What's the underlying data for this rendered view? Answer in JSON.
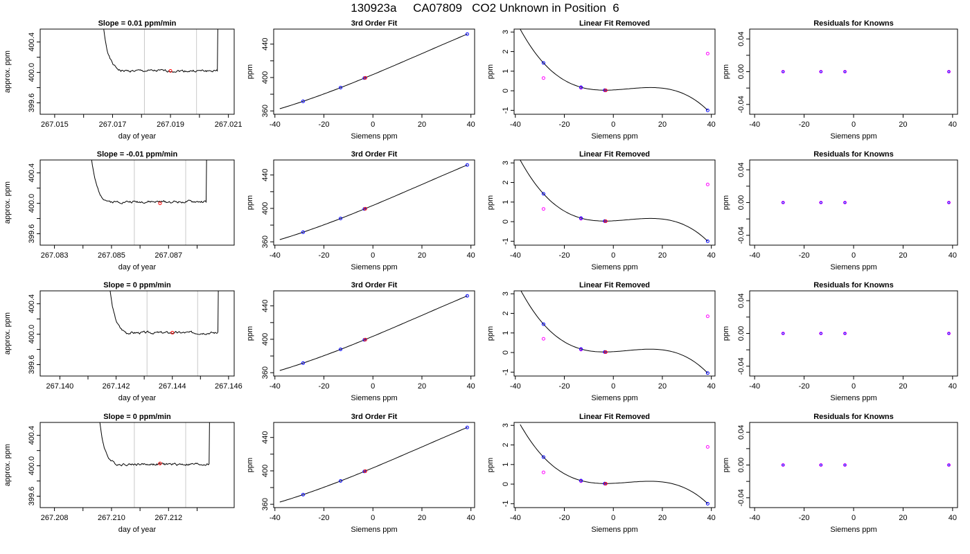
{
  "figure": {
    "title": "130923a     CA07809   CO2 Unknown in Position  6"
  },
  "colors": {
    "line": "#000000",
    "vline": "#c8c8c8",
    "known_point": "#0000ff",
    "unknown_point": "#ff0000",
    "raw_point": "#ff00ff"
  },
  "chart_data": [
    {
      "type": "line",
      "row": 0,
      "col": 0,
      "title": "Slope =  0.01  ppm/min",
      "xlabel": "day of year",
      "ylabel": "approx. ppm",
      "xlim": [
        267.0145,
        267.0212
      ],
      "ylim": [
        399.45,
        400.57
      ],
      "x_ticks": [
        267.015,
        267.016,
        267.017,
        267.018,
        267.019,
        267.02,
        267.021
      ],
      "x_tick_labels": [
        "267.015",
        "",
        "267.017",
        "",
        "267.019",
        "",
        "267.021"
      ],
      "y_ticks": [
        399.6,
        399.8,
        400.0,
        400.2,
        400.4
      ],
      "y_tick_labels": [
        "399.6",
        "",
        "400.0",
        "",
        "400.4"
      ],
      "vlines": [
        267.0181,
        267.0199
      ],
      "marker": {
        "x": 267.019,
        "y": 400.02
      },
      "trace_start": 267.0164,
      "trace_end": 267.0207,
      "noise_seed": 1
    },
    {
      "type": "scatter",
      "row": 0,
      "col": 1,
      "title": "3rd Order Fit",
      "xlabel": "Siemens ppm",
      "ylabel": "ppm",
      "xlim": [
        -40.5,
        41.5
      ],
      "ylim": [
        356,
        458
      ],
      "x_ticks": [
        -40,
        -20,
        0,
        20,
        40
      ],
      "x_tick_labels": [
        "-40",
        "-20",
        "0",
        "20",
        "40"
      ],
      "y_ticks": [
        360,
        380,
        400,
        420,
        440
      ],
      "y_tick_labels": [
        "360",
        "",
        "400",
        "",
        "440"
      ],
      "known_x": [
        -28.5,
        -13.2,
        -3.5,
        38.5
      ],
      "known_y": [
        371.5,
        387.9,
        399.3,
        452.0
      ],
      "unknown_x": [
        -3.1
      ],
      "unknown_y": [
        399.6
      ],
      "fit_range": [
        -38,
        38.5
      ]
    },
    {
      "type": "scatter",
      "row": 0,
      "col": 2,
      "title": "Linear Fit Removed",
      "xlabel": "Siemens ppm",
      "ylabel": "ppm",
      "xlim": [
        -40.5,
        41.5
      ],
      "ylim": [
        -1.2,
        3.15
      ],
      "x_ticks": [
        -40,
        -20,
        0,
        20,
        40
      ],
      "x_tick_labels": [
        "-40",
        "-20",
        "0",
        "20",
        "40"
      ],
      "y_ticks": [
        -1,
        0,
        1,
        2,
        3
      ],
      "y_tick_labels": [
        "-1",
        "0",
        "1",
        "2",
        "3"
      ],
      "known_x": [
        -28.5,
        -13.2,
        -3.5,
        38.5
      ],
      "known_y": [
        1.42,
        0.18,
        0.03,
        -1.0
      ],
      "unknown_x": [
        -3.1
      ],
      "unknown_y": [
        0.02
      ],
      "raw_x": [
        -28.5,
        -13.2,
        -3.5,
        38.5
      ],
      "raw_y": [
        0.65,
        0.15,
        0.02,
        1.9
      ],
      "curve_x": [
        -38,
        -28.5,
        -13.2,
        -3.5,
        14,
        38.5
      ],
      "curve_y": [
        2.95,
        1.42,
        0.18,
        0.03,
        -0.05,
        -1.0
      ]
    },
    {
      "type": "scatter",
      "row": 0,
      "col": 3,
      "title": "Residuals for Knowns",
      "xlabel": "Siemens ppm",
      "ylabel": "ppm",
      "xlim": [
        -42,
        42
      ],
      "ylim": [
        -0.052,
        0.052
      ],
      "x_ticks": [
        -40,
        -20,
        0,
        20,
        40
      ],
      "x_tick_labels": [
        "-40",
        "-20",
        "0",
        "20",
        "40"
      ],
      "y_ticks": [
        -0.04,
        -0.02,
        0,
        0.02,
        0.04
      ],
      "y_tick_labels": [
        "-0.04",
        "",
        "0.00",
        "",
        "0.04"
      ],
      "known_x": [
        -28.5,
        -13.2,
        -3.5,
        38.5
      ],
      "known_y": [
        0,
        0,
        0,
        0
      ]
    },
    {
      "type": "line",
      "row": 1,
      "col": 0,
      "title": "Slope =  -0.01  ppm/min",
      "xlabel": "day of year",
      "ylabel": "approx. ppm",
      "xlim": [
        267.0825,
        267.0893
      ],
      "ylim": [
        399.45,
        400.57
      ],
      "x_ticks": [
        267.083,
        267.084,
        267.085,
        267.086,
        267.087,
        267.088
      ],
      "x_tick_labels": [
        "267.083",
        "",
        "267.085",
        "",
        "267.087",
        ""
      ],
      "y_ticks": [
        399.6,
        399.8,
        400.0,
        400.2,
        400.4
      ],
      "y_tick_labels": [
        "399.6",
        "",
        "400.0",
        "",
        "400.4"
      ],
      "vlines": [
        267.0858,
        267.0876
      ],
      "marker": {
        "x": 267.0867,
        "y": 400.0
      },
      "trace_start": 267.084,
      "trace_end": 267.0884,
      "noise_seed": 2
    },
    {
      "type": "scatter",
      "row": 1,
      "col": 1,
      "title": "3rd Order Fit",
      "xlabel": "Siemens ppm",
      "ylabel": "ppm",
      "xlim": [
        -40.5,
        41.5
      ],
      "ylim": [
        356,
        458
      ],
      "x_ticks": [
        -40,
        -20,
        0,
        20,
        40
      ],
      "x_tick_labels": [
        "-40",
        "-20",
        "0",
        "20",
        "40"
      ],
      "y_ticks": [
        360,
        380,
        400,
        420,
        440
      ],
      "y_tick_labels": [
        "360",
        "",
        "400",
        "",
        "440"
      ],
      "known_x": [
        -28.5,
        -13.2,
        -3.5,
        38.5
      ],
      "known_y": [
        371.5,
        387.9,
        399.3,
        452.0
      ],
      "unknown_x": [
        -3.1
      ],
      "unknown_y": [
        399.6
      ],
      "fit_range": [
        -38,
        38.5
      ]
    },
    {
      "type": "scatter",
      "row": 1,
      "col": 2,
      "title": "Linear Fit Removed",
      "xlabel": "Siemens ppm",
      "ylabel": "ppm",
      "xlim": [
        -40.5,
        41.5
      ],
      "ylim": [
        -1.2,
        3.15
      ],
      "x_ticks": [
        -40,
        -20,
        0,
        20,
        40
      ],
      "x_tick_labels": [
        "-40",
        "-20",
        "0",
        "20",
        "40"
      ],
      "y_ticks": [
        -1,
        0,
        1,
        2,
        3
      ],
      "y_tick_labels": [
        "-1",
        "0",
        "1",
        "2",
        "3"
      ],
      "known_x": [
        -28.5,
        -13.2,
        -3.5,
        38.5
      ],
      "known_y": [
        1.42,
        0.18,
        0.03,
        -1.0
      ],
      "unknown_x": [
        -3.1
      ],
      "unknown_y": [
        0.02
      ],
      "raw_x": [
        -28.5,
        -13.2,
        -3.5,
        38.5
      ],
      "raw_y": [
        0.65,
        0.15,
        0.02,
        1.9
      ],
      "curve_x": [
        -38,
        -28.5,
        -13.2,
        -3.5,
        14,
        38.5
      ],
      "curve_y": [
        2.95,
        1.42,
        0.18,
        0.03,
        -0.05,
        -1.0
      ]
    },
    {
      "type": "scatter",
      "row": 1,
      "col": 3,
      "title": "Residuals for Knowns",
      "xlabel": "Siemens ppm",
      "ylabel": "ppm",
      "xlim": [
        -42,
        42
      ],
      "ylim": [
        -0.052,
        0.052
      ],
      "x_ticks": [
        -40,
        -20,
        0,
        20,
        40
      ],
      "x_tick_labels": [
        "-40",
        "-20",
        "0",
        "20",
        "40"
      ],
      "y_ticks": [
        -0.04,
        -0.02,
        0,
        0.02,
        0.04
      ],
      "y_tick_labels": [
        "-0.04",
        "",
        "0.00",
        "",
        "0.04"
      ],
      "known_x": [
        -28.5,
        -13.2,
        -3.5,
        38.5
      ],
      "known_y": [
        0,
        0,
        0,
        0
      ]
    },
    {
      "type": "line",
      "row": 2,
      "col": 0,
      "title": "Slope =  0  ppm/min",
      "xlabel": "day of year",
      "ylabel": "approx. ppm",
      "xlim": [
        267.1393,
        267.1462
      ],
      "ylim": [
        399.45,
        400.57
      ],
      "x_ticks": [
        267.14,
        267.141,
        267.142,
        267.143,
        267.144,
        267.145,
        267.146
      ],
      "x_tick_labels": [
        "267.140",
        "",
        "267.142",
        "",
        "267.144",
        "",
        "267.146"
      ],
      "y_ticks": [
        399.6,
        399.8,
        400.0,
        400.2,
        400.4
      ],
      "y_tick_labels": [
        "399.6",
        "",
        "400.0",
        "",
        "400.4"
      ],
      "vlines": [
        267.1431,
        267.1449
      ],
      "marker": {
        "x": 267.144,
        "y": 400.02
      },
      "trace_start": 267.1415,
      "trace_end": 267.1457,
      "noise_seed": 3
    },
    {
      "type": "scatter",
      "row": 2,
      "col": 1,
      "title": "3rd Order Fit",
      "xlabel": "Siemens ppm",
      "ylabel": "ppm",
      "xlim": [
        -40.5,
        41.5
      ],
      "ylim": [
        356,
        458
      ],
      "x_ticks": [
        -40,
        -20,
        0,
        20,
        40
      ],
      "x_tick_labels": [
        "-40",
        "-20",
        "0",
        "20",
        "40"
      ],
      "y_ticks": [
        360,
        380,
        400,
        420,
        440
      ],
      "y_tick_labels": [
        "360",
        "",
        "400",
        "",
        "440"
      ],
      "known_x": [
        -28.5,
        -13.2,
        -3.5,
        38.5
      ],
      "known_y": [
        371.5,
        387.9,
        399.3,
        452.0
      ],
      "unknown_x": [
        -3.1
      ],
      "unknown_y": [
        399.6
      ],
      "fit_range": [
        -38,
        38.5
      ]
    },
    {
      "type": "scatter",
      "row": 2,
      "col": 2,
      "title": "Linear Fit Removed",
      "xlabel": "Siemens ppm",
      "ylabel": "ppm",
      "xlim": [
        -40.5,
        41.5
      ],
      "ylim": [
        -1.2,
        3.15
      ],
      "x_ticks": [
        -40,
        -20,
        0,
        20,
        40
      ],
      "x_tick_labels": [
        "-40",
        "-20",
        "0",
        "20",
        "40"
      ],
      "y_ticks": [
        -1,
        0,
        1,
        2,
        3
      ],
      "y_tick_labels": [
        "-1",
        "0",
        "1",
        "2",
        "3"
      ],
      "known_x": [
        -28.5,
        -13.2,
        -3.5,
        38.5
      ],
      "known_y": [
        1.45,
        0.18,
        0.03,
        -1.05
      ],
      "unknown_x": [
        -3.1
      ],
      "unknown_y": [
        0.02
      ],
      "raw_x": [
        -28.5,
        -13.2,
        -3.5,
        38.5
      ],
      "raw_y": [
        0.7,
        0.15,
        0.02,
        1.85
      ],
      "curve_x": [
        -38,
        -28.5,
        -13.2,
        -3.5,
        14,
        38.5
      ],
      "curve_y": [
        3.0,
        1.45,
        0.18,
        0.03,
        -0.05,
        -1.05
      ]
    },
    {
      "type": "scatter",
      "row": 2,
      "col": 3,
      "title": "Residuals for Knowns",
      "xlabel": "Siemens ppm",
      "ylabel": "ppm",
      "xlim": [
        -42,
        42
      ],
      "ylim": [
        -0.052,
        0.052
      ],
      "x_ticks": [
        -40,
        -20,
        0,
        20,
        40
      ],
      "x_tick_labels": [
        "-40",
        "-20",
        "0",
        "20",
        "40"
      ],
      "y_ticks": [
        -0.04,
        -0.02,
        0,
        0.02,
        0.04
      ],
      "y_tick_labels": [
        "-0.04",
        "",
        "0.00",
        "",
        "0.04"
      ],
      "known_x": [
        -28.5,
        -13.2,
        -3.5,
        38.5
      ],
      "known_y": [
        0,
        0,
        0,
        0
      ]
    },
    {
      "type": "line",
      "row": 3,
      "col": 0,
      "title": "Slope =  0  ppm/min",
      "xlabel": "day of year",
      "ylabel": "approx. ppm",
      "xlim": [
        267.2075,
        267.2143
      ],
      "ylim": [
        399.45,
        400.57
      ],
      "x_ticks": [
        267.208,
        267.209,
        267.21,
        267.211,
        267.212,
        267.213
      ],
      "x_tick_labels": [
        "267.208",
        "",
        "267.210",
        "",
        "267.212",
        ""
      ],
      "y_ticks": [
        399.6,
        399.8,
        400.0,
        400.2,
        400.4
      ],
      "y_tick_labels": [
        "399.6",
        "",
        "400.0",
        "",
        "400.4"
      ],
      "vlines": [
        267.2108,
        267.2126
      ],
      "marker": {
        "x": 267.2117,
        "y": 400.03
      },
      "trace_start": 267.2093,
      "trace_end": 267.2135,
      "noise_seed": 4
    },
    {
      "type": "scatter",
      "row": 3,
      "col": 1,
      "title": "3rd Order Fit",
      "xlabel": "Siemens ppm",
      "ylabel": "ppm",
      "xlim": [
        -40.5,
        41.5
      ],
      "ylim": [
        356,
        458
      ],
      "x_ticks": [
        -40,
        -20,
        0,
        20,
        40
      ],
      "x_tick_labels": [
        "-40",
        "-20",
        "0",
        "20",
        "40"
      ],
      "y_ticks": [
        360,
        380,
        400,
        420,
        440
      ],
      "y_tick_labels": [
        "360",
        "",
        "400",
        "",
        "440"
      ],
      "known_x": [
        -28.5,
        -13.2,
        -3.5,
        38.5
      ],
      "known_y": [
        371.5,
        387.9,
        399.3,
        452.0
      ],
      "unknown_x": [
        -3.1
      ],
      "unknown_y": [
        399.6
      ],
      "fit_range": [
        -38,
        38.5
      ]
    },
    {
      "type": "scatter",
      "row": 3,
      "col": 2,
      "title": "Linear Fit Removed",
      "xlabel": "Siemens ppm",
      "ylabel": "ppm",
      "xlim": [
        -40.5,
        41.5
      ],
      "ylim": [
        -1.2,
        3.15
      ],
      "x_ticks": [
        -40,
        -20,
        0,
        20,
        40
      ],
      "x_tick_labels": [
        "-40",
        "-20",
        "0",
        "20",
        "40"
      ],
      "y_ticks": [
        -1,
        0,
        1,
        2,
        3
      ],
      "y_tick_labels": [
        "-1",
        "0",
        "1",
        "2",
        "3"
      ],
      "known_x": [
        -28.5,
        -13.2,
        -3.5,
        38.5
      ],
      "known_y": [
        1.38,
        0.18,
        0.03,
        -1.0
      ],
      "unknown_x": [
        -3.1
      ],
      "unknown_y": [
        0.02
      ],
      "raw_x": [
        -28.5,
        -13.2,
        -3.5,
        38.5
      ],
      "raw_y": [
        0.6,
        0.15,
        0.02,
        1.9
      ],
      "curve_x": [
        -38,
        -28.5,
        -13.2,
        -3.5,
        14,
        38.5
      ],
      "curve_y": [
        2.9,
        1.38,
        0.18,
        0.03,
        -0.05,
        -1.0
      ]
    },
    {
      "type": "scatter",
      "row": 3,
      "col": 3,
      "title": "Residuals for Knowns",
      "xlabel": "Siemens ppm",
      "ylabel": "ppm",
      "xlim": [
        -42,
        42
      ],
      "ylim": [
        -0.052,
        0.052
      ],
      "x_ticks": [
        -40,
        -20,
        0,
        20,
        40
      ],
      "x_tick_labels": [
        "-40",
        "-20",
        "0",
        "20",
        "40"
      ],
      "y_ticks": [
        -0.04,
        -0.02,
        0,
        0.02,
        0.04
      ],
      "y_tick_labels": [
        "-0.04",
        "",
        "0.00",
        "",
        "0.04"
      ],
      "known_x": [
        -28.5,
        -13.2,
        -3.5,
        38.5
      ],
      "known_y": [
        0,
        0,
        0,
        0
      ]
    }
  ]
}
